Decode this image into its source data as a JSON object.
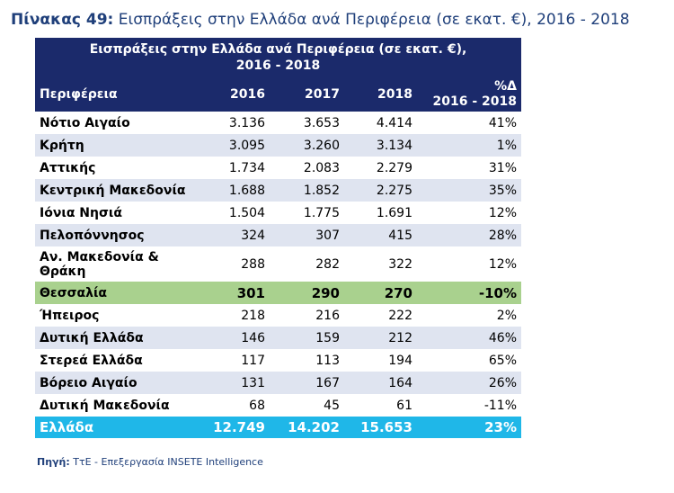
{
  "caption": {
    "number": "Πίνακας 49:",
    "text": "Εισπράξεις στην Ελλάδα ανά Περιφέρεια (σε εκατ. €), 2016 - 2018"
  },
  "table": {
    "title_line1": "Εισπράξεις στην Ελλάδα ανά Περιφέρεια (σε εκατ. €),",
    "title_line2": "2016 - 2018",
    "headers": {
      "region": "Περιφέρεια",
      "y2016": "2016",
      "y2017": "2017",
      "y2018": "2018",
      "pct_line1": "%Δ",
      "pct_line2": "2016 - 2018"
    },
    "rows": [
      {
        "name": "Νότιο Αιγαίο",
        "v2016": "3.136",
        "v2017": "3.653",
        "v2018": "4.414",
        "pct": "41%"
      },
      {
        "name": "Κρήτη",
        "v2016": "3.095",
        "v2017": "3.260",
        "v2018": "3.134",
        "pct": "1%"
      },
      {
        "name": "Αττικής",
        "v2016": "1.734",
        "v2017": "2.083",
        "v2018": "2.279",
        "pct": "31%"
      },
      {
        "name": "Κεντρική Μακεδονία",
        "v2016": "1.688",
        "v2017": "1.852",
        "v2018": "2.275",
        "pct": "35%"
      },
      {
        "name": "Ιόνια Νησιά",
        "v2016": "1.504",
        "v2017": "1.775",
        "v2018": "1.691",
        "pct": "12%"
      },
      {
        "name": "Πελοπόννησος",
        "v2016": "324",
        "v2017": "307",
        "v2018": "415",
        "pct": "28%"
      },
      {
        "name_line1": "Αν. Μακεδονία &",
        "name_line2": "Θράκη",
        "v2016": "288",
        "v2017": "282",
        "v2018": "322",
        "pct": "12%"
      },
      {
        "name": "Θεσσαλία",
        "v2016": "301",
        "v2017": "290",
        "v2018": "270",
        "pct": "-10%"
      },
      {
        "name": "Ήπειρος",
        "v2016": "218",
        "v2017": "216",
        "v2018": "222",
        "pct": "2%"
      },
      {
        "name": "Δυτική Ελλάδα",
        "v2016": "146",
        "v2017": "159",
        "v2018": "212",
        "pct": "46%"
      },
      {
        "name": "Στερεά Ελλάδα",
        "v2016": "117",
        "v2017": "113",
        "v2018": "194",
        "pct": "65%"
      },
      {
        "name": "Βόρειο Αιγαίο",
        "v2016": "131",
        "v2017": "167",
        "v2018": "164",
        "pct": "26%"
      },
      {
        "name": "Δυτική Μακεδονία",
        "v2016": "68",
        "v2017": "45",
        "v2018": "61",
        "pct": "-11%"
      }
    ],
    "total": {
      "name": "Ελλάδα",
      "v2016": "12.749",
      "v2017": "14.202",
      "v2018": "15.653",
      "pct": "23%"
    }
  },
  "source": {
    "label": "Πηγή:",
    "text": " ΤτΕ - Επεξεργασία INSETE Intelligence"
  },
  "colors": {
    "header_bg": "#1b2a6b",
    "band": "#dfe4f0",
    "highlight_row": "#a9d18e",
    "total_row": "#1fb7e8",
    "caption_text": "#1f3f7a"
  }
}
